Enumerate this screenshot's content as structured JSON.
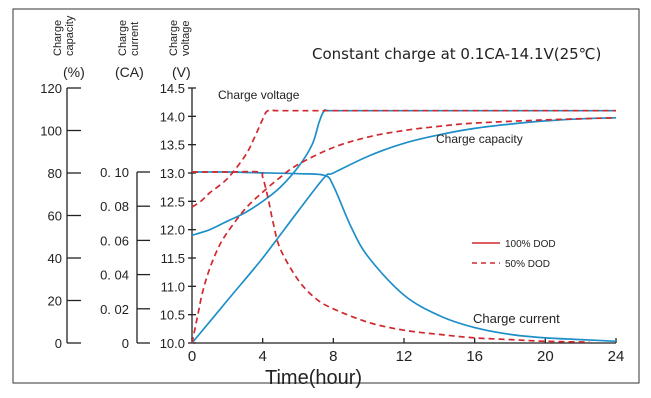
{
  "chart_data": {
    "type": "line",
    "title": "Constant charge at 0.1CA-14.1V(25℃)",
    "xlabel": "Time(hour)",
    "x_ticks": [
      "0",
      "4",
      "8",
      "12",
      "16",
      "20",
      "24"
    ],
    "xlim": [
      0,
      24
    ],
    "axes": {
      "capacity": {
        "label_lines": [
          "Charge",
          "capacity"
        ],
        "unit": "(%)",
        "ticks": [
          "0",
          "20",
          "40",
          "60",
          "80",
          "100",
          "120"
        ],
        "ylim": [
          0,
          120
        ]
      },
      "current": {
        "label_lines": [
          "Charge",
          "current"
        ],
        "unit": "(CA)",
        "ticks": [
          "0",
          "0. 02",
          "0. 04",
          "0. 06",
          "0. 08",
          "0. 10"
        ],
        "ylim": [
          0,
          0.1
        ]
      },
      "voltage": {
        "label_lines": [
          "Charge",
          "voltage"
        ],
        "unit": "(V)",
        "ticks": [
          "10.0",
          "10.5",
          "11.0",
          "11.5",
          "12.0",
          "12.5",
          "13.0",
          "13.5",
          "14.0",
          "14.5"
        ],
        "ylim": [
          10.0,
          14.5
        ]
      }
    },
    "annotations": {
      "voltage": "Charge voltage",
      "capacity": "Charge capacity",
      "current": "Charge current"
    },
    "legend": {
      "placement": "right",
      "entries": [
        {
          "label": "100% DOD",
          "style": "solid",
          "color": "#d0282e"
        },
        {
          "label": "50% DOD",
          "style": "dashed",
          "color": "#d0282e"
        }
      ]
    },
    "colors": {
      "curve_100": "#1e8fc8",
      "curve_50": "#d0282e"
    },
    "series": [
      {
        "group": "100% DOD",
        "quantity": "voltage",
        "axis": "voltage",
        "style": "solid",
        "x": [
          0,
          1,
          2,
          3,
          4,
          5,
          6,
          6.8,
          7.2,
          7.5,
          8,
          12,
          16,
          20,
          24
        ],
        "y": [
          11.9,
          12.0,
          12.15,
          12.3,
          12.5,
          12.75,
          13.1,
          13.5,
          13.9,
          14.1,
          14.1,
          14.1,
          14.1,
          14.1,
          14.1
        ]
      },
      {
        "group": "100% DOD",
        "quantity": "current",
        "axis": "current",
        "style": "solid",
        "x": [
          0,
          2,
          4,
          6,
          7.5,
          8,
          9,
          10,
          12,
          14,
          16,
          18,
          20,
          22,
          24
        ],
        "y": [
          0.1,
          0.1,
          0.0995,
          0.099,
          0.098,
          0.092,
          0.068,
          0.05,
          0.028,
          0.016,
          0.009,
          0.005,
          0.003,
          0.002,
          0.001
        ]
      },
      {
        "group": "100% DOD",
        "quantity": "capacity",
        "axis": "capacity",
        "style": "solid",
        "x": [
          0,
          2,
          4,
          6,
          7.5,
          8,
          10,
          12,
          14,
          16,
          18,
          20,
          22,
          24
        ],
        "y": [
          0,
          20,
          40,
          62,
          78,
          80,
          88,
          94,
          98,
          101,
          103,
          104.5,
          105.5,
          106
        ]
      },
      {
        "group": "50% DOD",
        "quantity": "voltage",
        "axis": "voltage",
        "style": "dashed",
        "x": [
          0,
          0.5,
          1,
          2,
          3,
          3.5,
          4,
          4.3,
          5,
          8,
          12,
          16,
          20,
          24
        ],
        "y": [
          12.4,
          12.5,
          12.65,
          12.9,
          13.3,
          13.6,
          13.95,
          14.1,
          14.1,
          14.1,
          14.1,
          14.1,
          14.1,
          14.1
        ]
      },
      {
        "group": "50% DOD",
        "quantity": "current",
        "axis": "current",
        "style": "dashed",
        "x": [
          0,
          2,
          3.8,
          4,
          4.3,
          4.6,
          5,
          6,
          7,
          8,
          10,
          12,
          14,
          16,
          18,
          20,
          22.5
        ],
        "y": [
          0.1,
          0.1,
          0.1,
          0.097,
          0.085,
          0.07,
          0.055,
          0.037,
          0.026,
          0.02,
          0.012,
          0.0075,
          0.005,
          0.003,
          0.002,
          0.001,
          0.0005
        ]
      },
      {
        "group": "50% DOD",
        "quantity": "capacity",
        "axis": "capacity",
        "style": "dashed",
        "x": [
          0,
          0.3,
          0.6,
          1,
          1.5,
          2,
          3,
          4,
          5,
          6,
          8,
          10,
          12,
          14,
          16,
          20,
          24
        ],
        "y": [
          0,
          12,
          24,
          35,
          45,
          52,
          63,
          71,
          78,
          84,
          92,
          97,
          100,
          102,
          103.5,
          105,
          106
        ]
      }
    ]
  }
}
